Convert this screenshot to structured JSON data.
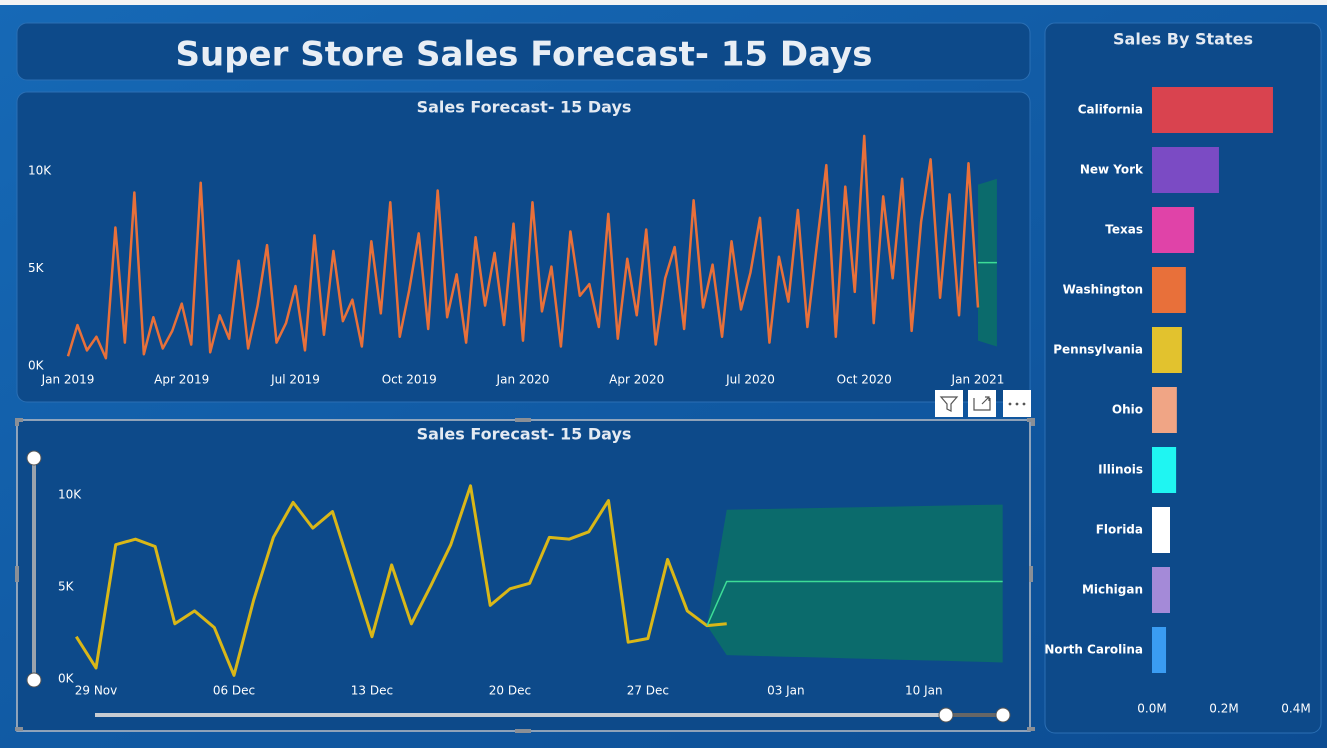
{
  "header": {
    "title": "Super Store Sales Forecast- 15 Days"
  },
  "chart_data": [
    {
      "type": "line",
      "title": "Sales Forecast- 15 Days",
      "categories": [
        "Jan 2019",
        null,
        null,
        null,
        null,
        null,
        null,
        null,
        null,
        null,
        null,
        null,
        "Apr 2019",
        null,
        null,
        null,
        null,
        null,
        null,
        null,
        null,
        null,
        null,
        null,
        "Jul 2019",
        null,
        null,
        null,
        null,
        null,
        null,
        null,
        null,
        null,
        null,
        null,
        "Oct 2019",
        null,
        null,
        null,
        null,
        null,
        null,
        null,
        null,
        null,
        null,
        null,
        "Jan 2020",
        null,
        null,
        null,
        null,
        null,
        null,
        null,
        null,
        null,
        null,
        null,
        "Apr 2020",
        null,
        null,
        null,
        null,
        null,
        null,
        null,
        null,
        null,
        null,
        null,
        "Jul 2020",
        null,
        null,
        null,
        null,
        null,
        null,
        null,
        null,
        null,
        null,
        null,
        "Oct 2020",
        null,
        null,
        null,
        null,
        null,
        null,
        null,
        null,
        null,
        null,
        null,
        "Jan 2021",
        null,
        null
      ],
      "series": [
        {
          "color": "#e8703a",
          "values": [
            500,
            2100,
            800,
            1500,
            400,
            7100,
            1200,
            8900,
            600,
            2500,
            900,
            1800,
            3200,
            1100,
            9400,
            700,
            2600,
            1400,
            5400,
            900,
            3100,
            6200,
            1200,
            2200,
            4100,
            800,
            6700,
            1600,
            5900,
            2300,
            3400,
            1000,
            6400,
            2700,
            8400,
            1500,
            3900,
            6800,
            1900,
            9000,
            2500,
            4700,
            1200,
            6600,
            3100,
            5800,
            2100,
            7300,
            1300,
            8400,
            2800,
            5100,
            1000,
            6900,
            3600,
            4200,
            2000,
            7800,
            1400,
            5500,
            2600,
            7000,
            1100,
            4500,
            6100,
            1900,
            8500,
            3000,
            5200,
            1500,
            6400,
            2900,
            4800,
            7600,
            1200,
            5600,
            3300,
            8000,
            2000,
            6200,
            10300,
            1500,
            9200,
            3800,
            11800,
            2200,
            8700,
            4500,
            9600,
            1800,
            7400,
            10600,
            3500,
            8800,
            2600,
            10400,
            3000,
            null,
            null
          ]
        },
        {
          "color": "#3ddc97",
          "values": [
            null,
            null,
            null,
            null,
            null,
            null,
            null,
            null,
            null,
            null,
            null,
            null,
            null,
            null,
            null,
            null,
            null,
            null,
            null,
            null,
            null,
            null,
            null,
            null,
            null,
            null,
            null,
            null,
            null,
            null,
            null,
            null,
            null,
            null,
            null,
            null,
            null,
            null,
            null,
            null,
            null,
            null,
            null,
            null,
            null,
            null,
            null,
            null,
            null,
            null,
            null,
            null,
            null,
            null,
            null,
            null,
            null,
            null,
            null,
            null,
            null,
            null,
            null,
            null,
            null,
            null,
            null,
            null,
            null,
            null,
            null,
            null,
            null,
            null,
            null,
            null,
            null,
            null,
            null,
            null,
            null,
            null,
            null,
            null,
            null,
            null,
            null,
            null,
            null,
            null,
            null,
            null,
            null,
            null,
            null,
            null,
            5300,
            5300,
            5300
          ]
        }
      ],
      "band": {
        "color": "#0b6b6c",
        "upper": [
          null,
          null,
          null,
          null,
          null,
          null,
          null,
          null,
          null,
          null,
          null,
          null,
          null,
          null,
          null,
          null,
          null,
          null,
          null,
          null,
          null,
          null,
          null,
          null,
          null,
          null,
          null,
          null,
          null,
          null,
          null,
          null,
          null,
          null,
          null,
          null,
          null,
          null,
          null,
          null,
          null,
          null,
          null,
          null,
          null,
          null,
          null,
          null,
          null,
          null,
          null,
          null,
          null,
          null,
          null,
          null,
          null,
          null,
          null,
          null,
          null,
          null,
          null,
          null,
          null,
          null,
          null,
          null,
          null,
          null,
          null,
          null,
          null,
          null,
          null,
          null,
          null,
          null,
          null,
          null,
          null,
          null,
          null,
          null,
          null,
          null,
          null,
          null,
          null,
          null,
          null,
          null,
          null,
          null,
          null,
          null,
          9300,
          9450,
          9600
        ],
        "lower": [
          null,
          null,
          null,
          null,
          null,
          null,
          null,
          null,
          null,
          null,
          null,
          null,
          null,
          null,
          null,
          null,
          null,
          null,
          null,
          null,
          null,
          null,
          null,
          null,
          null,
          null,
          null,
          null,
          null,
          null,
          null,
          null,
          null,
          null,
          null,
          null,
          null,
          null,
          null,
          null,
          null,
          null,
          null,
          null,
          null,
          null,
          null,
          null,
          null,
          null,
          null,
          null,
          null,
          null,
          null,
          null,
          null,
          null,
          null,
          null,
          null,
          null,
          null,
          null,
          null,
          null,
          null,
          null,
          null,
          null,
          null,
          null,
          null,
          null,
          null,
          null,
          null,
          null,
          null,
          null,
          null,
          null,
          null,
          null,
          null,
          null,
          null,
          null,
          null,
          null,
          null,
          null,
          null,
          null,
          null,
          null,
          1300,
          1150,
          1000
        ]
      },
      "ylim": [
        0,
        12000
      ],
      "yticks": [
        {
          "value": 0,
          "label": "0K"
        },
        {
          "value": 5000,
          "label": "5K"
        },
        {
          "value": 10000,
          "label": "10K"
        }
      ],
      "grid": false
    },
    {
      "type": "line",
      "title": "Sales Forecast- 15 Days",
      "categories": [
        null,
        "29 Nov",
        null,
        null,
        null,
        null,
        null,
        null,
        "06 Dec",
        null,
        null,
        null,
        null,
        null,
        null,
        "13 Dec",
        null,
        null,
        null,
        null,
        null,
        null,
        "20 Dec",
        null,
        null,
        null,
        null,
        null,
        null,
        "27 Dec",
        null,
        null,
        null,
        null,
        null,
        null,
        "03 Jan",
        null,
        null,
        null,
        null,
        null,
        null,
        "10 Jan",
        null,
        null,
        null,
        null
      ],
      "series": [
        {
          "color": "#d9b718",
          "values": [
            2300,
            600,
            7300,
            7600,
            7200,
            3000,
            3700,
            2800,
            200,
            4300,
            7700,
            9600,
            8200,
            9100,
            5700,
            2300,
            6200,
            3000,
            5100,
            7300,
            10500,
            4000,
            4900,
            5200,
            7700,
            7600,
            8000,
            9700,
            2000,
            2200,
            6500,
            3700,
            2900,
            3000,
            null,
            null,
            null,
            null,
            null,
            null,
            null,
            null,
            null,
            null,
            null,
            null,
            null,
            null
          ]
        },
        {
          "color": "#3ddc97",
          "values": [
            null,
            null,
            null,
            null,
            null,
            null,
            null,
            null,
            null,
            null,
            null,
            null,
            null,
            null,
            null,
            null,
            null,
            null,
            null,
            null,
            null,
            null,
            null,
            null,
            null,
            null,
            null,
            null,
            null,
            null,
            null,
            null,
            2900,
            5300,
            5300,
            5300,
            5300,
            5300,
            5300,
            5300,
            5300,
            5300,
            5300,
            5300,
            5300,
            5300,
            5300,
            5300
          ]
        }
      ],
      "band": {
        "color": "#0b6b6c",
        "upper": [
          null,
          null,
          null,
          null,
          null,
          null,
          null,
          null,
          null,
          null,
          null,
          null,
          null,
          null,
          null,
          null,
          null,
          null,
          null,
          null,
          null,
          null,
          null,
          null,
          null,
          null,
          null,
          null,
          null,
          null,
          null,
          null,
          2900,
          9200,
          9220,
          9240,
          9260,
          9280,
          9300,
          9320,
          9340,
          9360,
          9380,
          9400,
          9420,
          9440,
          9460,
          9480
        ],
        "lower": [
          null,
          null,
          null,
          null,
          null,
          null,
          null,
          null,
          null,
          null,
          null,
          null,
          null,
          null,
          null,
          null,
          null,
          null,
          null,
          null,
          null,
          null,
          null,
          null,
          null,
          null,
          null,
          null,
          null,
          null,
          null,
          null,
          2900,
          1300,
          1270,
          1240,
          1210,
          1190,
          1160,
          1130,
          1100,
          1070,
          1040,
          1010,
          990,
          960,
          930,
          900
        ]
      },
      "ylim": [
        0,
        11000
      ],
      "yticks": [
        {
          "value": 0,
          "label": "0K"
        },
        {
          "value": 5000,
          "label": "5K"
        },
        {
          "value": 10000,
          "label": "10K"
        }
      ],
      "grid": false
    },
    {
      "type": "hbar",
      "title": "Sales By States",
      "categories": [
        "California",
        "New York",
        "Texas",
        "Washington",
        "Pennsylvania",
        "Ohio",
        "Illinois",
        "Florida",
        "Michigan",
        "North Carolina"
      ],
      "values": [
        336000,
        186000,
        117000,
        94000,
        83000,
        69000,
        67000,
        50000,
        50000,
        39000
      ],
      "colors": [
        "#d9434f",
        "#7b4bc4",
        "#e043a8",
        "#e8703a",
        "#e2c22e",
        "#f0a585",
        "#1ff5f2",
        "#ffffff",
        "#a48ad8",
        "#3a9cf2"
      ],
      "xlim": [
        0,
        400000
      ],
      "xticks": [
        {
          "value": 0,
          "label": "0.0M"
        },
        {
          "value": 200000,
          "label": "0.2M"
        },
        {
          "value": 400000,
          "label": "0.4M"
        }
      ],
      "grid": false
    }
  ]
}
